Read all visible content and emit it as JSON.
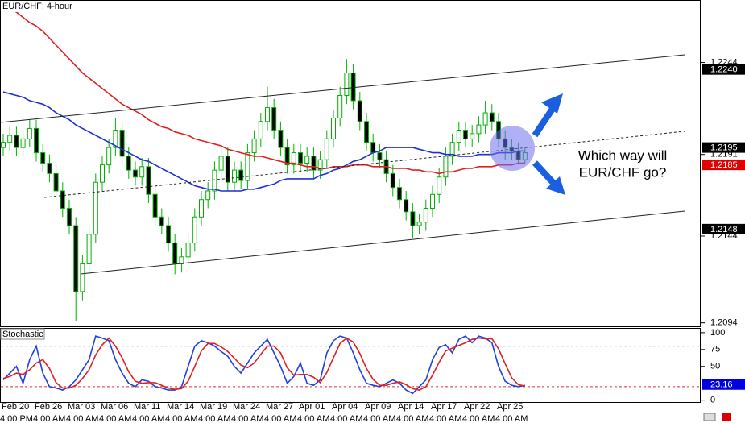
{
  "chart_data": [
    {
      "type": "candlestick",
      "title": "EUR/CHF: 4-hour",
      "annotation": [
        "Which way will",
        "EUR/CHF go?"
      ],
      "categories": [
        "Feb 20",
        null,
        null,
        null,
        null,
        "Feb 26",
        null,
        null,
        null,
        null,
        "Mar 03",
        null,
        null,
        null,
        null,
        "Mar 06",
        null,
        null,
        null,
        null,
        "Mar 11",
        null,
        null,
        null,
        null,
        "Mar 14",
        null,
        null,
        null,
        null,
        "Mar 19",
        null,
        null,
        null,
        null,
        "Mar 24",
        null,
        null,
        null,
        null,
        "Mar 27",
        null,
        null,
        null,
        null,
        "Apr 01",
        null,
        null,
        null,
        null,
        "Apr 04",
        null,
        null,
        null,
        null,
        "Apr 09",
        null,
        null,
        null,
        null,
        "Apr 14",
        null,
        null,
        null,
        null,
        "Apr 17",
        null,
        null,
        null,
        null,
        "Apr 22",
        null,
        null,
        null,
        null,
        "Apr 25",
        null,
        null,
        null,
        null
      ],
      "category_times": [
        "4:00 PM",
        null,
        null,
        null,
        null,
        "4:00 AM",
        null,
        null,
        null,
        null,
        "4:00 AM",
        null,
        null,
        null,
        null,
        "4:00 AM",
        null,
        null,
        null,
        null,
        "4:00 AM",
        null,
        null,
        null,
        null,
        "4:00 AM",
        null,
        null,
        null,
        null,
        "4:00 AM",
        null,
        null,
        null,
        null,
        "4:00 AM",
        null,
        null,
        null,
        null,
        "4:00 AM",
        null,
        null,
        null,
        null,
        "4:00 AM",
        null,
        null,
        null,
        null,
        "4:00 AM",
        null,
        null,
        null,
        null,
        "4:00 AM",
        null,
        null,
        null,
        null,
        "4:00 AM",
        null,
        null,
        null,
        null,
        "4:00 AM",
        null,
        null,
        null,
        null,
        "4:00 AM",
        null,
        null,
        null,
        null,
        "4:00 AM",
        null,
        null,
        null,
        null
      ],
      "open": [
        1.2195,
        1.2198,
        1.2202,
        1.2195,
        1.22,
        1.2206,
        1.2192,
        1.2186,
        1.218,
        1.217,
        1.216,
        1.215,
        1.2112,
        1.2128,
        1.2145,
        1.2175,
        1.2185,
        1.2195,
        1.2205,
        1.219,
        1.2182,
        1.2178,
        1.2184,
        1.2168,
        1.2155,
        1.215,
        1.214,
        1.2128,
        1.2132,
        1.214,
        1.2155,
        1.2165,
        1.217,
        1.2182,
        1.219,
        1.2175,
        1.2182,
        1.2176,
        1.2192,
        1.22,
        1.221,
        1.2218,
        1.2205,
        1.2195,
        1.2185,
        1.2192,
        1.2186,
        1.219,
        1.2182,
        1.2188,
        1.22,
        1.2212,
        1.2225,
        1.2238,
        1.2222,
        1.221,
        1.2198,
        1.2192,
        1.2188,
        1.218,
        1.2172,
        1.2165,
        1.2158,
        1.215,
        1.2152,
        1.216,
        1.2168,
        1.2178,
        1.219,
        1.2198,
        1.2205,
        1.22,
        1.2203,
        1.2208,
        1.2215,
        1.221,
        1.22,
        1.2195,
        1.2193,
        1.2188
      ],
      "high": [
        1.2203,
        1.2207,
        1.2207,
        1.2205,
        1.2211,
        1.2211,
        1.2197,
        1.2191,
        1.2185,
        1.2175,
        1.2165,
        1.2155,
        1.2133,
        1.215,
        1.218,
        1.219,
        1.22,
        1.2212,
        1.221,
        1.2195,
        1.2187,
        1.2189,
        1.2189,
        1.2173,
        1.216,
        1.2155,
        1.2145,
        1.2137,
        1.2145,
        1.216,
        1.217,
        1.2175,
        1.2187,
        1.2195,
        1.2195,
        1.2187,
        1.2187,
        1.2197,
        1.2205,
        1.2215,
        1.223,
        1.2223,
        1.221,
        1.22,
        1.2197,
        1.2197,
        1.2195,
        1.2195,
        1.2193,
        1.2205,
        1.2217,
        1.223,
        1.2246,
        1.2243,
        1.2227,
        1.2215,
        1.2203,
        1.2197,
        1.2193,
        1.2185,
        1.2177,
        1.217,
        1.2163,
        1.2157,
        1.2165,
        1.2173,
        1.2183,
        1.2195,
        1.2203,
        1.221,
        1.221,
        1.2208,
        1.2213,
        1.2222,
        1.222,
        1.2215,
        1.2205,
        1.22,
        1.2198,
        1.2195
      ],
      "low": [
        1.219,
        1.2193,
        1.219,
        1.219,
        1.2195,
        1.2187,
        1.2181,
        1.2175,
        1.2165,
        1.2155,
        1.2145,
        1.2095,
        1.2107,
        1.2123,
        1.214,
        1.217,
        1.218,
        1.219,
        1.2185,
        1.2177,
        1.2173,
        1.2173,
        1.2163,
        1.215,
        1.2145,
        1.2135,
        1.2122,
        1.2123,
        1.2127,
        1.2135,
        1.215,
        1.216,
        1.2165,
        1.2177,
        1.217,
        1.217,
        1.2171,
        1.2171,
        1.2187,
        1.2195,
        1.2205,
        1.22,
        1.219,
        1.218,
        1.218,
        1.2181,
        1.2181,
        1.2177,
        1.2177,
        1.2183,
        1.2195,
        1.2207,
        1.222,
        1.2217,
        1.2205,
        1.2193,
        1.2187,
        1.2183,
        1.2175,
        1.2167,
        1.216,
        1.2153,
        1.2143,
        1.2145,
        1.2147,
        1.2155,
        1.2163,
        1.2173,
        1.2185,
        1.2193,
        1.2195,
        1.2195,
        1.2198,
        1.2203,
        1.2205,
        1.2195,
        1.2188,
        1.2188,
        1.2186,
        1.2186
      ],
      "close": [
        1.2198,
        1.2202,
        1.2195,
        1.22,
        1.2206,
        1.2192,
        1.2186,
        1.218,
        1.217,
        1.216,
        1.215,
        1.2112,
        1.2128,
        1.2145,
        1.2175,
        1.2185,
        1.2195,
        1.2205,
        1.219,
        1.2182,
        1.2178,
        1.2184,
        1.2168,
        1.2155,
        1.215,
        1.214,
        1.2128,
        1.2132,
        1.214,
        1.2155,
        1.2165,
        1.217,
        1.2182,
        1.219,
        1.2175,
        1.2182,
        1.2176,
        1.2192,
        1.22,
        1.221,
        1.2218,
        1.2205,
        1.2195,
        1.2185,
        1.2192,
        1.2186,
        1.219,
        1.2182,
        1.2188,
        1.22,
        1.2212,
        1.2225,
        1.2238,
        1.2222,
        1.221,
        1.2198,
        1.2192,
        1.2188,
        1.218,
        1.2172,
        1.2165,
        1.2158,
        1.215,
        1.2152,
        1.216,
        1.2168,
        1.2178,
        1.219,
        1.2198,
        1.2205,
        1.22,
        1.2203,
        1.2208,
        1.2215,
        1.221,
        1.22,
        1.2195,
        1.2193,
        1.2188,
        1.2192
      ],
      "series": [
        {
          "color": "#1f2fd0",
          "values": [
            1.2227,
            1.2226,
            1.2225,
            1.2224,
            1.2222,
            1.2221,
            1.222,
            1.2218,
            1.2215,
            1.2213,
            1.2211,
            1.2208,
            1.2206,
            1.2204,
            1.2202,
            1.22,
            1.2198,
            1.2196,
            1.2194,
            1.2192,
            1.219,
            1.2188,
            1.2187,
            1.2185,
            1.2183,
            1.2181,
            1.2179,
            1.2177,
            1.2175,
            1.2173,
            1.2172,
            1.2171,
            1.2171,
            1.217,
            1.217,
            1.217,
            1.217,
            1.2171,
            1.2171,
            1.2172,
            1.2173,
            1.2174,
            1.2176,
            1.2177,
            1.2177,
            1.2177,
            1.2177,
            1.2177,
            1.2179,
            1.218,
            1.2182,
            1.2183,
            1.2185,
            1.2187,
            1.2188,
            1.219,
            1.2192,
            1.2193,
            1.2195,
            1.2195,
            1.2195,
            1.2195,
            1.2195,
            1.2194,
            1.2193,
            1.2192,
            1.2192,
            1.2191,
            1.2191,
            1.219,
            1.219,
            1.219,
            1.2191,
            1.2191,
            1.2191,
            1.2192,
            1.2192,
            1.2192,
            1.2193,
            1.2193
          ]
        },
        {
          "color": "#e02020",
          "values": [
            1.2278,
            1.2275,
            1.2273,
            1.227,
            1.2267,
            1.2265,
            1.2262,
            1.2258,
            1.2254,
            1.225,
            1.2246,
            1.2242,
            1.2238,
            1.2235,
            1.2232,
            1.2229,
            1.2226,
            1.2223,
            1.222,
            1.2218,
            1.2216,
            1.2214,
            1.2211,
            1.2209,
            1.2207,
            1.2206,
            1.2204,
            1.2203,
            1.2202,
            1.22,
            1.2199,
            1.2198,
            1.2197,
            1.2196,
            1.2194,
            1.2193,
            1.2192,
            1.2191,
            1.219,
            1.219,
            1.2189,
            1.2188,
            1.2187,
            1.2186,
            1.2186,
            1.2185,
            1.2184,
            1.2184,
            1.2183,
            1.2183,
            1.2184,
            1.2184,
            1.2184,
            1.2185,
            1.2185,
            1.2185,
            1.2184,
            1.2184,
            1.2184,
            1.2183,
            1.2183,
            1.2183,
            1.2182,
            1.2182,
            1.2181,
            1.2181,
            1.218,
            1.2181,
            1.2181,
            1.2182,
            1.2183,
            1.2183,
            1.2184,
            1.2184,
            1.2184,
            1.2185,
            1.2185,
            1.2185,
            1.2186,
            1.2186
          ]
        }
      ],
      "ylim": [
        1.2092,
        1.228
      ],
      "yticks": [
        1.2244,
        1.2191,
        1.2144,
        1.2094
      ],
      "price_tags": [
        {
          "value": 1.224,
          "label": "1.2240",
          "color": "#000000"
        },
        {
          "value": 1.2195,
          "color": "#000000"
        },
        {
          "value": 1.2185,
          "color": "#e00000"
        },
        {
          "value": 1.2148,
          "color": "#000000"
        }
      ],
      "up_color": "#00b000"
    },
    {
      "type": "line",
      "title": "Stochastic",
      "series": [
        {
          "color": "#2040e0",
          "values": [
            30,
            40,
            50,
            25,
            60,
            80,
            40,
            20,
            18,
            15,
            20,
            30,
            45,
            60,
            95,
            92,
            88,
            60,
            40,
            25,
            20,
            30,
            28,
            20,
            18,
            15,
            15,
            20,
            50,
            80,
            88,
            85,
            80,
            72,
            65,
            50,
            40,
            55,
            70,
            80,
            90,
            70,
            50,
            25,
            35,
            55,
            25,
            22,
            30,
            70,
            88,
            95,
            92,
            70,
            45,
            25,
            22,
            20,
            25,
            30,
            25,
            15,
            10,
            20,
            30,
            60,
            78,
            82,
            70,
            90,
            95,
            85,
            95,
            92,
            85,
            50,
            28,
            22,
            20,
            22
          ]
        },
        {
          "color": "#e02020",
          "values": [
            32,
            35,
            40,
            38,
            45,
            55,
            60,
            47,
            26,
            18,
            18,
            22,
            32,
            45,
            67,
            82,
            92,
            80,
            63,
            42,
            28,
            25,
            26,
            26,
            22,
            18,
            16,
            17,
            28,
            50,
            73,
            84,
            84,
            79,
            72,
            62,
            52,
            48,
            55,
            68,
            80,
            80,
            70,
            48,
            37,
            38,
            38,
            34,
            26,
            41,
            63,
            84,
            92,
            86,
            69,
            47,
            31,
            22,
            22,
            25,
            27,
            23,
            17,
            15,
            20,
            37,
            56,
            73,
            77,
            81,
            85,
            90,
            92,
            91,
            91,
            76,
            54,
            33,
            23,
            21
          ]
        }
      ],
      "ylim": [
        -4,
        107
      ],
      "yticks": [
        100,
        75,
        50,
        0
      ],
      "levels": [
        {
          "value": 80,
          "color": "#3050c0"
        },
        {
          "value": 20,
          "color": "#e03030"
        }
      ],
      "price_tags": [
        {
          "value": 23.16,
          "color": "#0000e0"
        }
      ]
    }
  ]
}
